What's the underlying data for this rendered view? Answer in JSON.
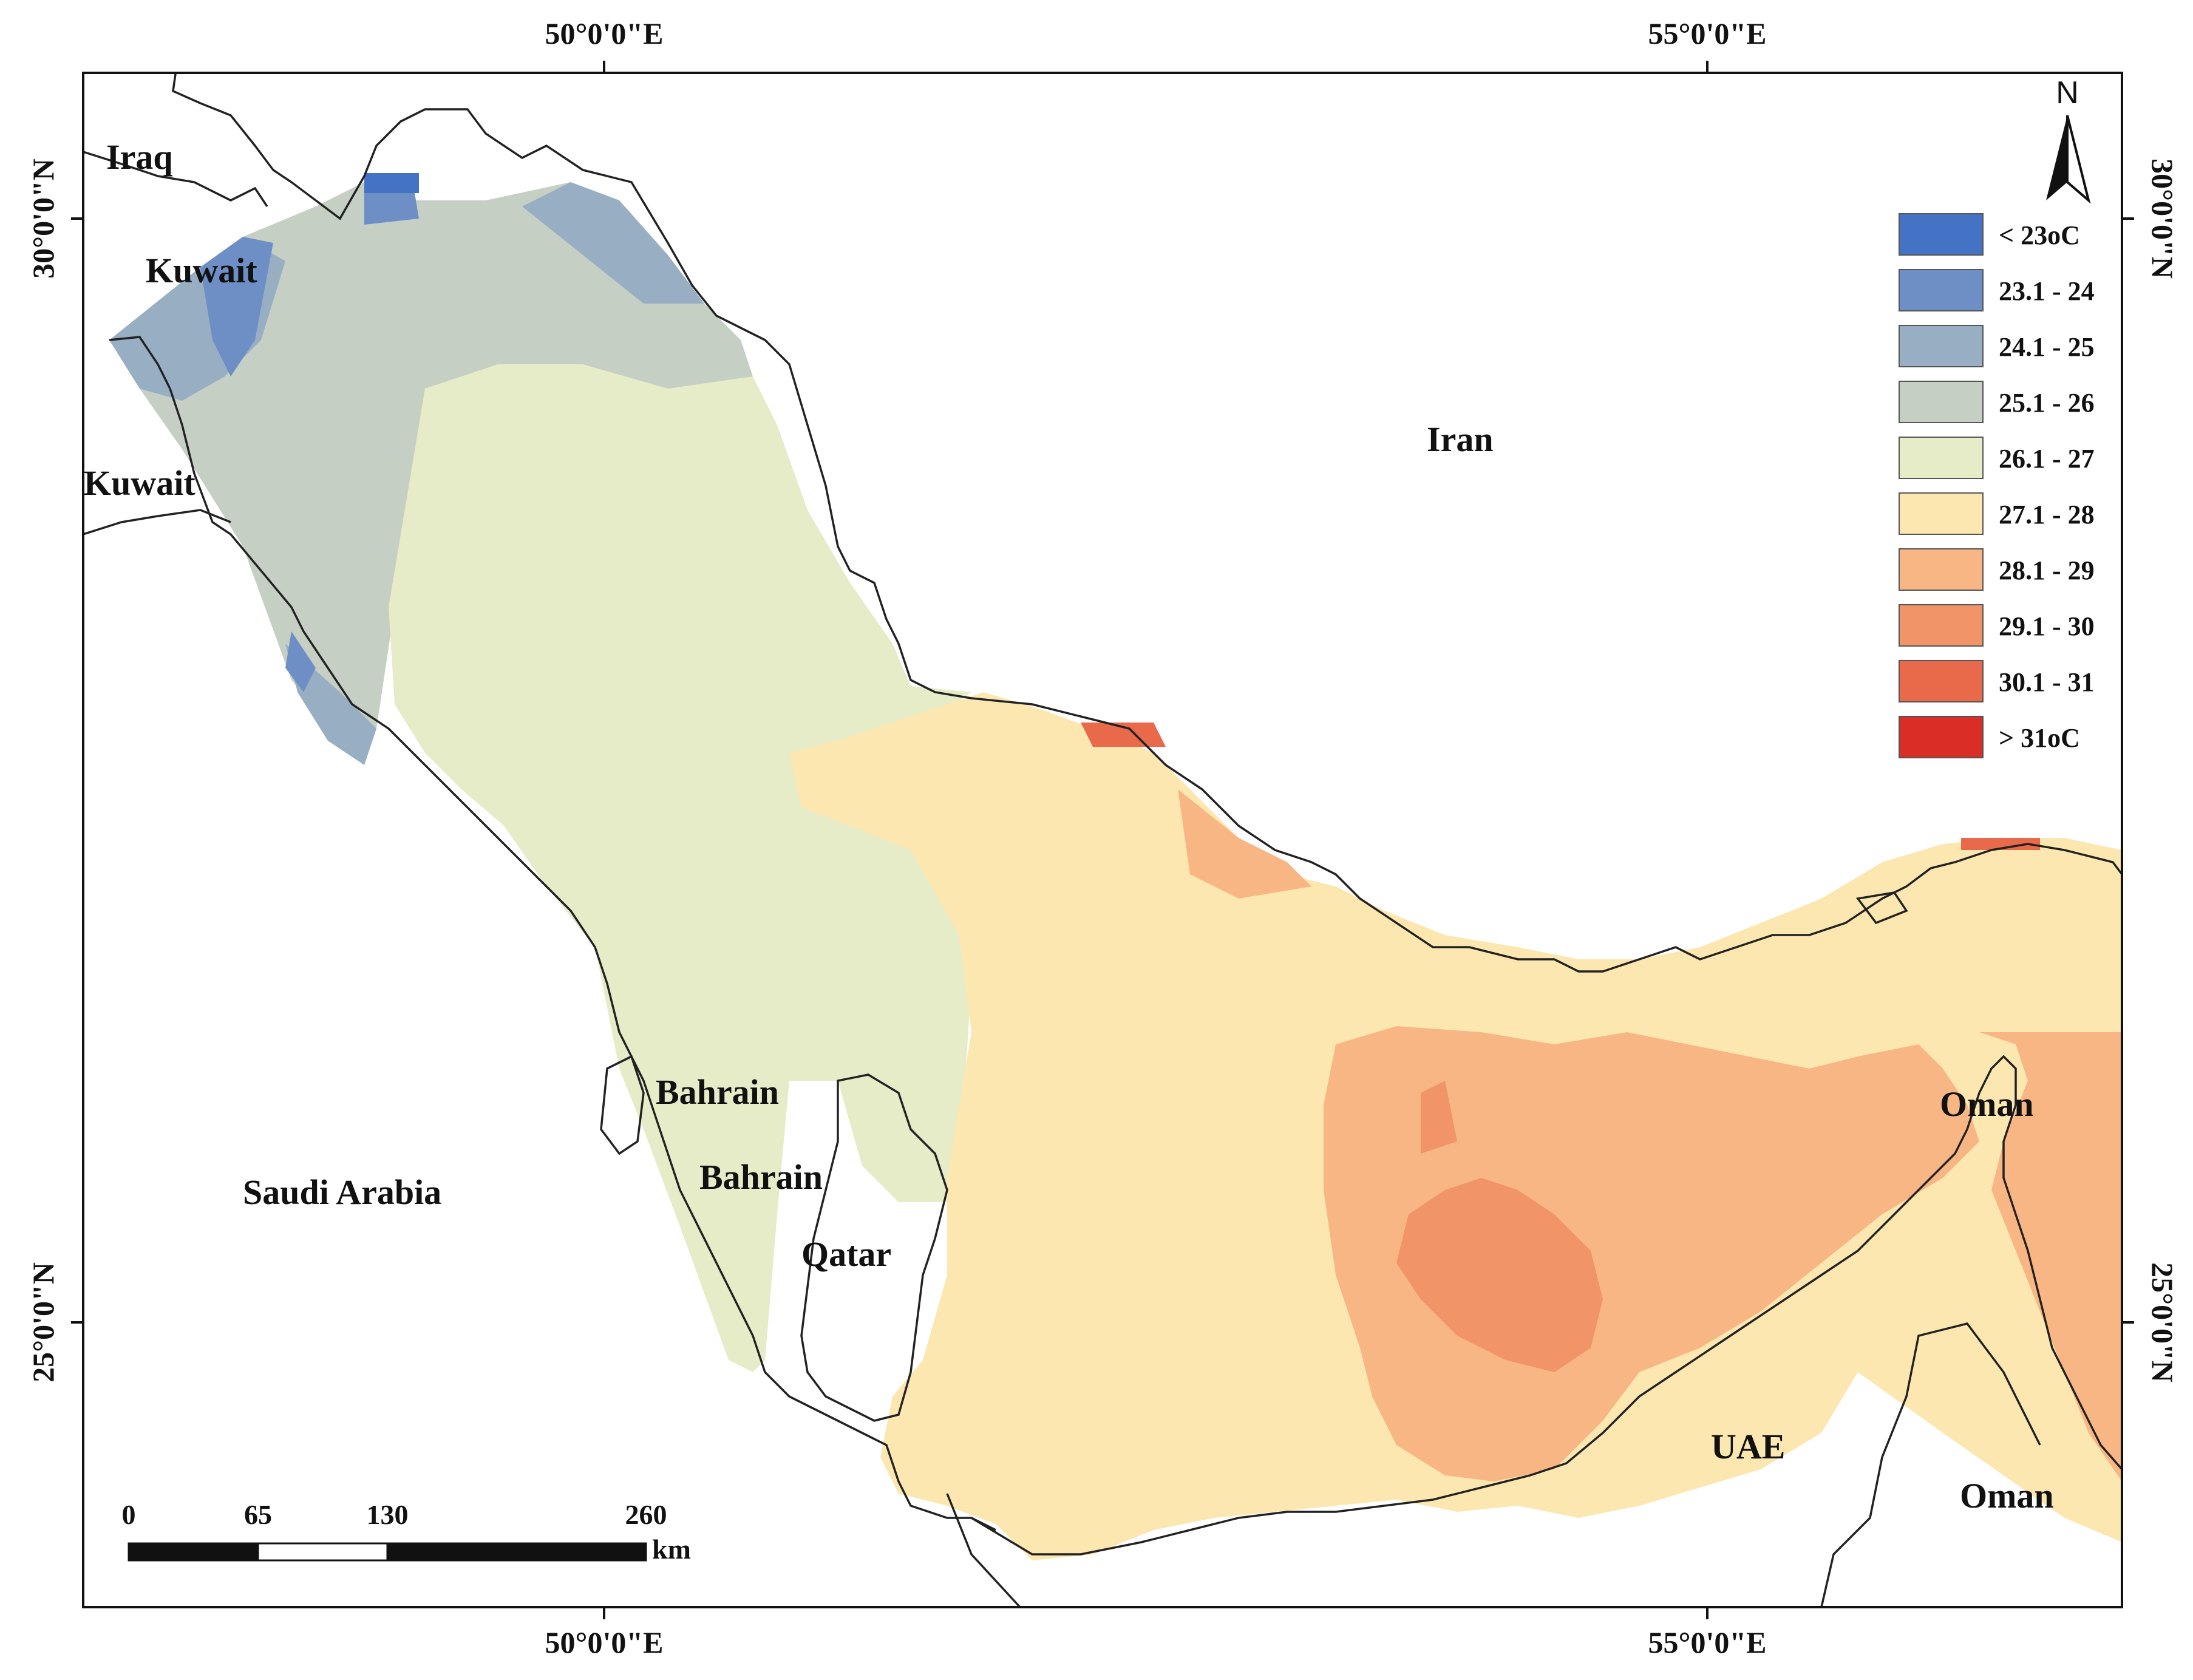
{
  "map": {
    "longitude_labels": [
      "50°0'0\"E",
      "55°0'0\"E"
    ],
    "latitude_labels": [
      "30°0'0\"N",
      "25°0'0\"N"
    ],
    "north_arrow": "N",
    "places": [
      {
        "name": "Iraq"
      },
      {
        "name": "Kuwait"
      },
      {
        "name": "Kuwait"
      },
      {
        "name": "Iran"
      },
      {
        "name": "Bahrain"
      },
      {
        "name": "Bahrain"
      },
      {
        "name": "Saudi Arabia"
      },
      {
        "name": "Qatar"
      },
      {
        "name": "Oman"
      },
      {
        "name": "UAE"
      },
      {
        "name": "Oman"
      }
    ],
    "legend": [
      {
        "label": "< 23oC",
        "color": "#4472c4"
      },
      {
        "label": "23.1 - 24",
        "color": "#6d8fc5"
      },
      {
        "label": "24.1 - 25",
        "color": "#98aec2"
      },
      {
        "label": "25.1 - 26",
        "color": "#c5cfc4"
      },
      {
        "label": "26.1 - 27",
        "color": "#e6ebc8"
      },
      {
        "label": "27.1 - 28",
        "color": "#fde7b0"
      },
      {
        "label": "28.1 - 29",
        "color": "#f8b685"
      },
      {
        "label": "29.1 - 30",
        "color": "#f19467"
      },
      {
        "label": "30.1 - 31",
        "color": "#e86a4b"
      },
      {
        "label": "> 31oC",
        "color": "#da2d26"
      }
    ],
    "scale_bar": {
      "ticks": [
        "0",
        "65",
        "130",
        "260"
      ],
      "unit": "km"
    }
  }
}
